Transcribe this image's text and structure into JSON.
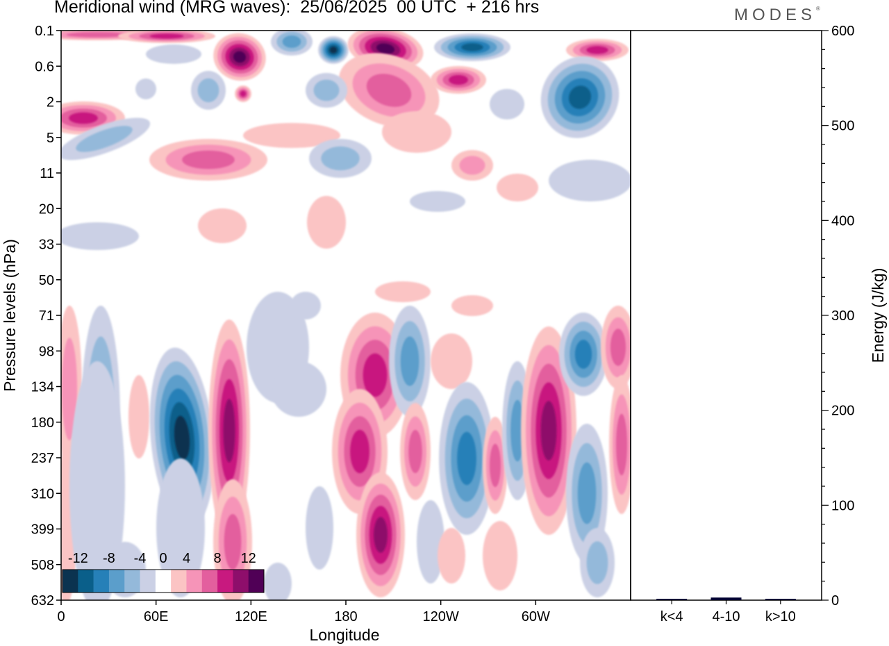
{
  "title": "Meridional wind (MRG waves):  25/06/2025  00 UTC  + 216 hrs",
  "brand": "MODES",
  "chart_data": [
    {
      "type": "heatmap",
      "title": "Meridional wind (MRG waves):  25/06/2025  00 UTC  + 216 hrs",
      "xlabel": "Longitude",
      "ylabel": "Pressure levels (hPa)",
      "x_ticks": [
        "0",
        "60E",
        "120E",
        "180",
        "120W",
        "60W"
      ],
      "x_tick_values": [
        0,
        60,
        120,
        180,
        240,
        300
      ],
      "xlim": [
        0,
        360
      ],
      "y_ticks": [
        "0.1",
        "0.6",
        "2",
        "5",
        "11",
        "20",
        "33",
        "50",
        "71",
        "98",
        "134",
        "180",
        "237",
        "310",
        "399",
        "508",
        "632"
      ],
      "y_scale": "log",
      "ylim": [
        632,
        0.1
      ],
      "colorbar": {
        "labels": [
          "-12",
          "-8",
          "-4",
          "0",
          "4",
          "8",
          "12"
        ],
        "label_values": [
          -12,
          -8,
          -4,
          0,
          4,
          8,
          12
        ],
        "levels": [
          -14,
          -12,
          -10,
          -8,
          -6,
          -4,
          -2,
          2,
          4,
          6,
          8,
          10,
          12,
          14
        ],
        "colors": [
          "#0b3350",
          "#0a5f8a",
          "#2680b8",
          "#5b9ecb",
          "#94b9da",
          "#cbd0e5",
          "#ffffff",
          "#fbc4c4",
          "#f694b8",
          "#e35f9e",
          "#c8197f",
          "#8e0e6b",
          "#500056"
        ]
      },
      "legend_placement": "bottom-left",
      "grid": false
    },
    {
      "type": "bar",
      "categories": [
        "k<4",
        "4-10",
        "k>10"
      ],
      "values": [
        0,
        2,
        0
      ],
      "ylabel": "Energy (J/kg)",
      "ylim": [
        0,
        600
      ],
      "y_ticks": [
        "0",
        "100",
        "200",
        "300",
        "400",
        "500",
        "600"
      ],
      "bar_color": "#000033",
      "grid": false
    }
  ]
}
